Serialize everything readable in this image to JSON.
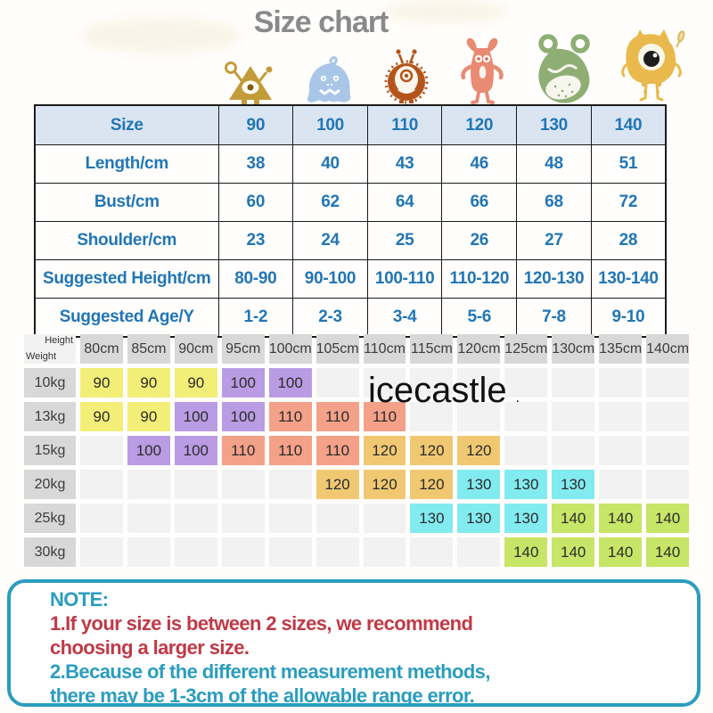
{
  "title": "Size chart",
  "watermark": {
    "text": "icecastle",
    "dot": "."
  },
  "monsters": [
    {
      "name": "triangle-monster",
      "color": "#c29c39"
    },
    {
      "name": "blob-monster",
      "color": "#a9c6e8"
    },
    {
      "name": "spiky-eye-monster",
      "color": "#b4541b"
    },
    {
      "name": "horned-monster",
      "color": "#e98a72"
    },
    {
      "name": "loop-ear-monster",
      "color": "#8fae74"
    },
    {
      "name": "one-eye-monster",
      "color": "#eab94d"
    }
  ],
  "size_table": {
    "text_color": "#2176b5",
    "header_bg": "#dbe5f2",
    "header": [
      "Size",
      "90",
      "100",
      "110",
      "120",
      "130",
      "140"
    ],
    "rows": [
      [
        "Length/cm",
        "38",
        "40",
        "43",
        "46",
        "48",
        "51"
      ],
      [
        "Bust/cm",
        "60",
        "62",
        "64",
        "66",
        "68",
        "72"
      ],
      [
        "Shoulder/cm",
        "23",
        "24",
        "25",
        "26",
        "27",
        "28"
      ],
      [
        "Suggested Height/cm",
        "80-90",
        "90-100",
        "100-110",
        "110-120",
        "120-130",
        "130-140"
      ],
      [
        "Suggested Age/Y",
        "1-2",
        "2-3",
        "3-4",
        "5-6",
        "7-8",
        "9-10"
      ]
    ]
  },
  "matrix_table": {
    "corner": {
      "top": "Height",
      "bottom": "Weight"
    },
    "columns": [
      "80cm",
      "85cm",
      "90cm",
      "95cm",
      "100cm",
      "105cm",
      "110cm",
      "115cm",
      "120cm",
      "125cm",
      "130cm",
      "135cm",
      "140cm"
    ],
    "colors": {
      "yellow": "#f3ee78",
      "purple": "#b99ce3",
      "salmon": "#f4a189",
      "amber": "#f0c872",
      "cyan": "#82ebf0",
      "green": "#c7e566"
    },
    "rows": [
      {
        "label": "10kg",
        "cells": [
          [
            "90",
            "yellow"
          ],
          [
            "90",
            "yellow"
          ],
          [
            "90",
            "yellow"
          ],
          [
            "100",
            "purple"
          ],
          [
            "100",
            "purple"
          ],
          null,
          null,
          null,
          null,
          null,
          null,
          null,
          null
        ]
      },
      {
        "label": "13kg",
        "cells": [
          [
            "90",
            "yellow"
          ],
          [
            "90",
            "yellow"
          ],
          [
            "100",
            "purple"
          ],
          [
            "100",
            "purple"
          ],
          [
            "110",
            "salmon"
          ],
          [
            "110",
            "salmon"
          ],
          [
            "110",
            "salmon"
          ],
          null,
          null,
          null,
          null,
          null,
          null
        ]
      },
      {
        "label": "15kg",
        "cells": [
          null,
          [
            "100",
            "purple"
          ],
          [
            "100",
            "purple"
          ],
          [
            "110",
            "salmon"
          ],
          [
            "110",
            "salmon"
          ],
          [
            "110",
            "salmon"
          ],
          [
            "120",
            "amber"
          ],
          [
            "120",
            "amber"
          ],
          [
            "120",
            "amber"
          ],
          null,
          null,
          null,
          null
        ]
      },
      {
        "label": "20kg",
        "cells": [
          null,
          null,
          null,
          null,
          null,
          [
            "120",
            "amber"
          ],
          [
            "120",
            "amber"
          ],
          [
            "120",
            "amber"
          ],
          [
            "130",
            "cyan"
          ],
          [
            "130",
            "cyan"
          ],
          [
            "130",
            "cyan"
          ],
          null,
          null
        ]
      },
      {
        "label": "25kg",
        "cells": [
          null,
          null,
          null,
          null,
          null,
          null,
          null,
          [
            "130",
            "cyan"
          ],
          [
            "130",
            "cyan"
          ],
          [
            "130",
            "cyan"
          ],
          [
            "140",
            "green"
          ],
          [
            "140",
            "green"
          ],
          [
            "140",
            "green"
          ]
        ]
      },
      {
        "label": "30kg",
        "cells": [
          null,
          null,
          null,
          null,
          null,
          null,
          null,
          null,
          null,
          [
            "140",
            "green"
          ],
          [
            "140",
            "green"
          ],
          [
            "140",
            "green"
          ],
          [
            "140",
            "green"
          ]
        ]
      }
    ]
  },
  "note": {
    "colors": {
      "teal": "#2b9dbf",
      "red": "#c13946"
    },
    "lines": [
      {
        "text": "NOTE:",
        "color": "teal"
      },
      {
        "text": "1.If your size is between 2 sizes, we recommend",
        "color": "red"
      },
      {
        "text": "choosing a larger size.",
        "color": "red"
      },
      {
        "text": "2.Because of the different measurement methods,",
        "color": "teal"
      },
      {
        "text": "there may be 1-3cm of the allowable range error.",
        "color": "teal"
      }
    ]
  }
}
